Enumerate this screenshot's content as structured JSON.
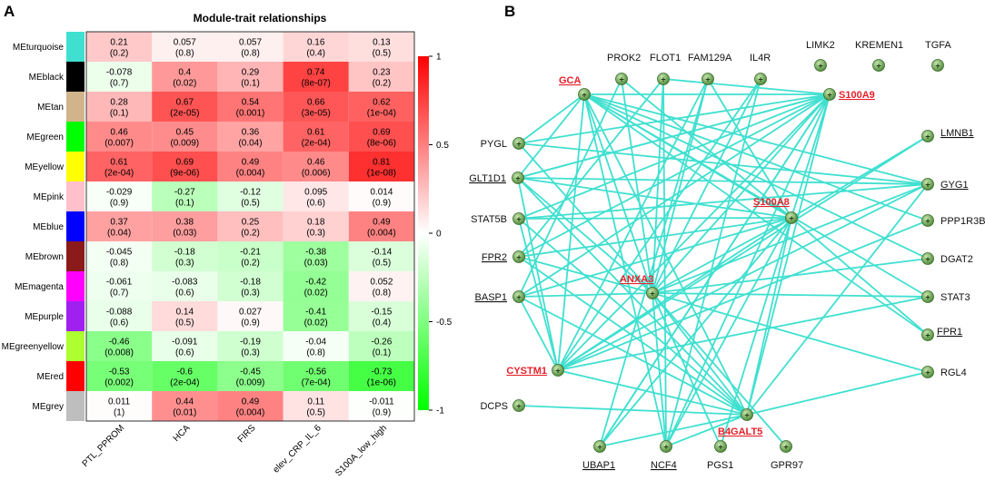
{
  "panel_a": {
    "letter": "A",
    "title": "Module-trait relationships",
    "colorbar": {
      "ticks": [
        {
          "value": 1,
          "label": "1"
        },
        {
          "value": 0.5,
          "label": "0.5"
        },
        {
          "value": 0,
          "label": "0"
        },
        {
          "value": -0.5,
          "label": "-0.5"
        },
        {
          "value": -1,
          "label": "-1"
        }
      ]
    },
    "columns": [
      "PTL_PPROM",
      "HCA",
      "FIRS",
      "elev_CRP_IL_6",
      "S100A_low_high"
    ],
    "rows": [
      {
        "name": "MEturquoise",
        "color": "#40e0d0",
        "values": [
          0.21,
          0.057,
          0.057,
          0.16,
          0.13
        ],
        "pvals": [
          "(0.2)",
          "(0.8)",
          "(0.8)",
          "(0.4)",
          "(0.5)"
        ]
      },
      {
        "name": "MEblack",
        "color": "#000000",
        "values": [
          -0.078,
          0.4,
          0.29,
          0.74,
          0.23
        ],
        "pvals": [
          "(0.7)",
          "(0.02)",
          "(0.1)",
          "(8e-07)",
          "(0.2)"
        ]
      },
      {
        "name": "MEtan",
        "color": "#d2b48c",
        "values": [
          0.28,
          0.67,
          0.54,
          0.66,
          0.62
        ],
        "pvals": [
          "(0.1)",
          "(2e-05)",
          "(0.001)",
          "(3e-05)",
          "(1e-04)"
        ]
      },
      {
        "name": "MEgreen",
        "color": "#00ff00",
        "values": [
          0.46,
          0.45,
          0.36,
          0.61,
          0.69
        ],
        "pvals": [
          "(0.007)",
          "(0.009)",
          "(0.04)",
          "(2e-04)",
          "(8e-06)"
        ]
      },
      {
        "name": "MEyellow",
        "color": "#ffff00",
        "values": [
          0.61,
          0.69,
          0.49,
          0.46,
          0.81
        ],
        "pvals": [
          "(2e-04)",
          "(9e-06)",
          "(0.004)",
          "(0.006)",
          "(1e-08)"
        ]
      },
      {
        "name": "MEpink",
        "color": "#ffc0cb",
        "values": [
          -0.029,
          -0.27,
          -0.12,
          0.095,
          0.014
        ],
        "pvals": [
          "(0.9)",
          "(0.1)",
          "(0.5)",
          "(0.6)",
          "(0.9)"
        ]
      },
      {
        "name": "MEblue",
        "color": "#0000ff",
        "values": [
          0.37,
          0.38,
          0.25,
          0.18,
          0.49
        ],
        "pvals": [
          "(0.04)",
          "(0.03)",
          "(0.2)",
          "(0.3)",
          "(0.004)"
        ]
      },
      {
        "name": "MEbrown",
        "color": "#8b1a1a",
        "values": [
          -0.045,
          -0.18,
          -0.21,
          -0.38,
          -0.14
        ],
        "pvals": [
          "(0.8)",
          "(0.3)",
          "(0.2)",
          "(0.03)",
          "(0.5)"
        ]
      },
      {
        "name": "MEmagenta",
        "color": "#ff00ff",
        "values": [
          -0.061,
          -0.083,
          -0.18,
          -0.42,
          0.052
        ],
        "pvals": [
          "(0.7)",
          "(0.6)",
          "(0.3)",
          "(0.02)",
          "(0.8)"
        ]
      },
      {
        "name": "MEpurple",
        "color": "#a020f0",
        "values": [
          -0.088,
          0.14,
          0.027,
          -0.41,
          -0.15
        ],
        "pvals": [
          "(0.6)",
          "(0.5)",
          "(0.9)",
          "(0.02)",
          "(0.4)"
        ]
      },
      {
        "name": "MEgreenyellow",
        "color": "#adff2f",
        "values": [
          -0.46,
          -0.091,
          -0.19,
          -0.04,
          -0.26
        ],
        "pvals": [
          "(0.008)",
          "(0.6)",
          "(0.3)",
          "(0.8)",
          "(0.1)"
        ]
      },
      {
        "name": "MEred",
        "color": "#ff0000",
        "values": [
          -0.53,
          -0.6,
          -0.45,
          -0.56,
          -0.73
        ],
        "pvals": [
          "(0.002)",
          "(2e-04)",
          "(0.009)",
          "(7e-04)",
          "(1e-06)"
        ]
      },
      {
        "name": "MEgrey",
        "color": "#bebebe",
        "values": [
          0.011,
          0.44,
          0.49,
          0.11,
          -0.011
        ],
        "pvals": [
          "(1)",
          "(0.01)",
          "(0.004)",
          "(0.5)",
          "(0.9)"
        ]
      }
    ]
  },
  "panel_b": {
    "letter": "B",
    "highlight_color": "#e8202a",
    "edge_color": "#40e0d0",
    "nodes": [
      {
        "id": "GCA",
        "label": "GCA",
        "highlight": true,
        "underline": true
      },
      {
        "id": "PROK2",
        "label": "PROK2",
        "highlight": false,
        "underline": false
      },
      {
        "id": "FLOT1",
        "label": "FLOT1",
        "highlight": false,
        "underline": false
      },
      {
        "id": "FAM129A",
        "label": "FAM129A",
        "highlight": false,
        "underline": false
      },
      {
        "id": "IL4R",
        "label": "IL4R",
        "highlight": false,
        "underline": false
      },
      {
        "id": "LIMK2",
        "label": "LIMK2",
        "highlight": false,
        "underline": false
      },
      {
        "id": "KREMEN1",
        "label": "KREMEN1",
        "highlight": false,
        "underline": false
      },
      {
        "id": "TGFA",
        "label": "TGFA",
        "highlight": false,
        "underline": false
      },
      {
        "id": "S100A9",
        "label": "S100A9",
        "highlight": true,
        "underline": true
      },
      {
        "id": "PYGL",
        "label": "PYGL",
        "highlight": false,
        "underline": false
      },
      {
        "id": "LMNB1",
        "label": "LMNB1",
        "highlight": false,
        "underline": true
      },
      {
        "id": "GLT1D1",
        "label": "GLT1D1",
        "highlight": false,
        "underline": true
      },
      {
        "id": "GYG1",
        "label": "GYG1",
        "highlight": false,
        "underline": true
      },
      {
        "id": "S100A8",
        "label": "S100A8",
        "highlight": true,
        "underline": true
      },
      {
        "id": "STAT5B",
        "label": "STAT5B",
        "highlight": false,
        "underline": false
      },
      {
        "id": "PPP1R3B",
        "label": "PPP1R3B",
        "highlight": false,
        "underline": false
      },
      {
        "id": "FPR2",
        "label": "FPR2",
        "highlight": false,
        "underline": true
      },
      {
        "id": "DGAT2",
        "label": "DGAT2",
        "highlight": false,
        "underline": false
      },
      {
        "id": "ANXA3",
        "label": "ANXA3",
        "highlight": true,
        "underline": true
      },
      {
        "id": "BASP1",
        "label": "BASP1",
        "highlight": false,
        "underline": true
      },
      {
        "id": "STAT3",
        "label": "STAT3",
        "highlight": false,
        "underline": false
      },
      {
        "id": "FPR1",
        "label": "FPR1",
        "highlight": false,
        "underline": true
      },
      {
        "id": "CYSTM1",
        "label": "CYSTM1",
        "highlight": true,
        "underline": true
      },
      {
        "id": "RGL4",
        "label": "RGL4",
        "highlight": false,
        "underline": false
      },
      {
        "id": "DCPS",
        "label": "DCPS",
        "highlight": false,
        "underline": false
      },
      {
        "id": "B4GALT5",
        "label": "B4GALT5",
        "highlight": true,
        "underline": true
      },
      {
        "id": "UBAP1",
        "label": "UBAP1",
        "highlight": false,
        "underline": true
      },
      {
        "id": "NCF4",
        "label": "NCF4",
        "highlight": false,
        "underline": true
      },
      {
        "id": "PGS1",
        "label": "PGS1",
        "highlight": false,
        "underline": false
      },
      {
        "id": "GPR97",
        "label": "GPR97",
        "highlight": false,
        "underline": false
      }
    ],
    "edges": [
      [
        "GCA",
        "S100A8"
      ],
      [
        "GCA",
        "CYSTM1"
      ],
      [
        "GCA",
        "ANXA3"
      ],
      [
        "GCA",
        "B4GALT5"
      ],
      [
        "GCA",
        "GYG1"
      ],
      [
        "GCA",
        "PYGL"
      ],
      [
        "GCA",
        "GLT1D1"
      ],
      [
        "GCA",
        "STAT3"
      ],
      [
        "GCA",
        "NCF4"
      ],
      [
        "GCA",
        "PPP1R3B"
      ],
      [
        "GCA",
        "DGAT2"
      ],
      [
        "S100A9",
        "PYGL"
      ],
      [
        "S100A9",
        "GLT1D1"
      ],
      [
        "S100A9",
        "STAT5B"
      ],
      [
        "S100A9",
        "FPR2"
      ],
      [
        "S100A9",
        "BASP1"
      ],
      [
        "S100A9",
        "CYSTM1"
      ],
      [
        "S100A9",
        "ANXA3"
      ],
      [
        "S100A9",
        "UBAP1"
      ],
      [
        "S100A9",
        "NCF4"
      ],
      [
        "S100A9",
        "B4GALT5"
      ],
      [
        "S100A9",
        "S100A8"
      ],
      [
        "S100A9",
        "FLOT1"
      ],
      [
        "S100A9",
        "GLT1D1"
      ],
      [
        "S100A9",
        "GCA"
      ],
      [
        "S100A8",
        "STAT5B"
      ],
      [
        "S100A8",
        "FPR2"
      ],
      [
        "S100A8",
        "BASP1"
      ],
      [
        "S100A8",
        "CYSTM1"
      ],
      [
        "S100A8",
        "ANXA3"
      ],
      [
        "S100A8",
        "UBAP1"
      ],
      [
        "S100A8",
        "NCF4"
      ],
      [
        "S100A8",
        "PGS1"
      ],
      [
        "S100A8",
        "B4GALT5"
      ],
      [
        "S100A8",
        "GLT1D1"
      ],
      [
        "S100A8",
        "LMNB1"
      ],
      [
        "S100A8",
        "PROK2"
      ],
      [
        "S100A8",
        "FAM129A"
      ],
      [
        "S100A8",
        "FPR1"
      ],
      [
        "ANXA3",
        "GLT1D1"
      ],
      [
        "ANXA3",
        "FPR2"
      ],
      [
        "ANXA3",
        "BASP1"
      ],
      [
        "ANXA3",
        "GYG1"
      ],
      [
        "ANXA3",
        "STAT3"
      ],
      [
        "ANXA3",
        "DGAT2"
      ],
      [
        "ANXA3",
        "RGL4"
      ],
      [
        "ANXA3",
        "B4GALT5"
      ],
      [
        "ANXA3",
        "NCF4"
      ],
      [
        "ANXA3",
        "GPR97"
      ],
      [
        "ANXA3",
        "PGS1"
      ],
      [
        "ANXA3",
        "PROK2"
      ],
      [
        "ANXA3",
        "FLOT1"
      ],
      [
        "ANXA3",
        "IL4R"
      ],
      [
        "ANXA3",
        "FAM129A"
      ],
      [
        "ANXA3",
        "PYGL"
      ],
      [
        "CYSTM1",
        "GYG1"
      ],
      [
        "CYSTM1",
        "PPP1R3B"
      ],
      [
        "CYSTM1",
        "STAT3"
      ],
      [
        "CYSTM1",
        "B4GALT5"
      ],
      [
        "CYSTM1",
        "STAT5B"
      ],
      [
        "CYSTM1",
        "GLT1D1"
      ],
      [
        "CYSTM1",
        "BASP1"
      ],
      [
        "CYSTM1",
        "FAM129A"
      ],
      [
        "CYSTM1",
        "IL4R"
      ],
      [
        "CYSTM1",
        "LMNB1"
      ],
      [
        "B4GALT5",
        "RGL4"
      ],
      [
        "B4GALT5",
        "STAT5B"
      ],
      [
        "B4GALT5",
        "FPR2"
      ],
      [
        "B4GALT5",
        "BASP1"
      ],
      [
        "B4GALT5",
        "DCPS"
      ],
      [
        "B4GALT5",
        "NCF4"
      ],
      [
        "B4GALT5",
        "GLT1D1"
      ],
      [
        "B4GALT5",
        "GYG1"
      ],
      [
        "B4GALT5",
        "UBAP1"
      ],
      [
        "PYGL",
        "GYG1"
      ],
      [
        "GLT1D1",
        "GYG1"
      ],
      [
        "STAT5B",
        "GYG1"
      ],
      [
        "NCF4",
        "FLOT1"
      ],
      [
        "NCF4",
        "IL4R"
      ],
      [
        "UBAP1",
        "FAM129A"
      ],
      [
        "UBAP1",
        "S100A9"
      ],
      [
        "BASP1",
        "PROK2"
      ],
      [
        "FPR2",
        "FLOT1"
      ],
      [
        "GCA",
        "FPR1"
      ]
    ]
  }
}
